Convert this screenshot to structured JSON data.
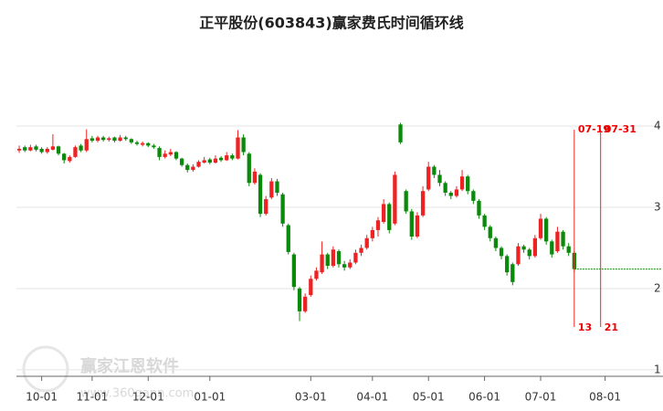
{
  "chart_data": {
    "type": "candlestick",
    "title": "正平股份(603843)赢家费氏时间循环线",
    "watermark": "赢家江恩软件",
    "watermark_url": "www.360gann.com",
    "up_color": "#ee2222",
    "down_color": "#0a8a0a",
    "marker_color": "#ee2222",
    "xlim": [
      -0.5,
      114.5
    ],
    "ylim": [
      0.92,
      4.99
    ],
    "yticks": [
      1,
      2,
      3,
      4
    ],
    "grid": true,
    "xticks": [
      {
        "value": 4,
        "label": "10-01"
      },
      {
        "value": 13,
        "label": "11-01"
      },
      {
        "value": 23,
        "label": "12-01"
      },
      {
        "value": 34,
        "label": "01-01"
      },
      {
        "value": 52,
        "label": "03-01"
      },
      {
        "value": 63,
        "label": "04-01"
      },
      {
        "value": 73,
        "label": "05-01"
      },
      {
        "value": 83,
        "label": "06-01"
      },
      {
        "value": 93,
        "label": "07-01"
      },
      {
        "value": 104.5,
        "label": "08-01"
      }
    ],
    "markers": [
      {
        "x": 99,
        "top_label": "07-19",
        "bottom_label": "13"
      },
      {
        "x": 103.7,
        "top_label": "07-31",
        "bottom_label": "21"
      }
    ],
    "projection_level": 2.24,
    "projection_color": "#0a8a0a",
    "ohlc": [
      [
        3.7,
        3.76,
        3.67,
        3.72
      ],
      [
        3.74,
        3.76,
        3.68,
        3.7
      ],
      [
        3.7,
        3.77,
        3.69,
        3.74
      ],
      [
        3.75,
        3.77,
        3.69,
        3.71
      ],
      [
        3.72,
        3.74,
        3.66,
        3.68
      ],
      [
        3.68,
        3.74,
        3.66,
        3.72
      ],
      [
        3.71,
        3.9,
        3.7,
        3.75
      ],
      [
        3.75,
        3.76,
        3.64,
        3.66
      ],
      [
        3.66,
        3.67,
        3.54,
        3.58
      ],
      [
        3.57,
        3.64,
        3.55,
        3.62
      ],
      [
        3.62,
        3.76,
        3.61,
        3.74
      ],
      [
        3.76,
        3.78,
        3.68,
        3.7
      ],
      [
        3.7,
        3.96,
        3.68,
        3.84
      ],
      [
        3.85,
        3.88,
        3.8,
        3.82
      ],
      [
        3.82,
        3.88,
        3.8,
        3.86
      ],
      [
        3.86,
        3.88,
        3.81,
        3.83
      ],
      [
        3.83,
        3.87,
        3.81,
        3.85
      ],
      [
        3.86,
        3.87,
        3.8,
        3.82
      ],
      [
        3.82,
        3.89,
        3.81,
        3.86
      ],
      [
        3.86,
        3.88,
        3.82,
        3.84
      ],
      [
        3.84,
        3.85,
        3.78,
        3.8
      ],
      [
        3.8,
        3.82,
        3.76,
        3.78
      ],
      [
        3.77,
        3.81,
        3.75,
        3.79
      ],
      [
        3.79,
        3.8,
        3.74,
        3.76
      ],
      [
        3.76,
        3.78,
        3.72,
        3.74
      ],
      [
        3.73,
        3.75,
        3.58,
        3.62
      ],
      [
        3.62,
        3.7,
        3.6,
        3.66
      ],
      [
        3.65,
        3.72,
        3.63,
        3.68
      ],
      [
        3.68,
        3.69,
        3.58,
        3.6
      ],
      [
        3.6,
        3.61,
        3.5,
        3.52
      ],
      [
        3.52,
        3.54,
        3.43,
        3.46
      ],
      [
        3.46,
        3.53,
        3.44,
        3.5
      ],
      [
        3.5,
        3.58,
        3.49,
        3.56
      ],
      [
        3.55,
        3.62,
        3.54,
        3.58
      ],
      [
        3.59,
        3.61,
        3.53,
        3.55
      ],
      [
        3.55,
        3.64,
        3.54,
        3.6
      ],
      [
        3.61,
        3.63,
        3.56,
        3.58
      ],
      [
        3.58,
        3.68,
        3.57,
        3.64
      ],
      [
        3.64,
        3.66,
        3.58,
        3.6
      ],
      [
        3.6,
        3.95,
        3.59,
        3.86
      ],
      [
        3.86,
        3.9,
        3.64,
        3.68
      ],
      [
        3.66,
        3.68,
        3.26,
        3.3
      ],
      [
        3.3,
        3.48,
        3.28,
        3.44
      ],
      [
        3.4,
        3.42,
        2.88,
        2.92
      ],
      [
        2.92,
        3.14,
        2.9,
        3.1
      ],
      [
        3.12,
        3.36,
        3.1,
        3.32
      ],
      [
        3.32,
        3.35,
        3.14,
        3.18
      ],
      [
        3.16,
        3.18,
        2.76,
        2.8
      ],
      [
        2.78,
        2.8,
        2.42,
        2.45
      ],
      [
        2.42,
        2.44,
        1.98,
        2.02
      ],
      [
        2.0,
        2.02,
        1.6,
        1.72
      ],
      [
        1.72,
        1.94,
        1.7,
        1.9
      ],
      [
        1.92,
        2.16,
        1.9,
        2.12
      ],
      [
        2.12,
        2.26,
        2.1,
        2.22
      ],
      [
        2.2,
        2.58,
        2.18,
        2.42
      ],
      [
        2.42,
        2.44,
        2.24,
        2.28
      ],
      [
        2.28,
        2.52,
        2.26,
        2.48
      ],
      [
        2.46,
        2.48,
        2.26,
        2.3
      ],
      [
        2.3,
        2.34,
        2.22,
        2.26
      ],
      [
        2.26,
        2.36,
        2.24,
        2.32
      ],
      [
        2.32,
        2.48,
        2.3,
        2.44
      ],
      [
        2.44,
        2.54,
        2.4,
        2.5
      ],
      [
        2.5,
        2.66,
        2.48,
        2.62
      ],
      [
        2.62,
        2.76,
        2.58,
        2.72
      ],
      [
        2.72,
        2.88,
        2.64,
        2.84
      ],
      [
        2.82,
        3.1,
        2.8,
        3.04
      ],
      [
        3.04,
        3.06,
        2.68,
        2.72
      ],
      [
        2.8,
        3.44,
        2.78,
        3.4
      ],
      [
        4.02,
        4.04,
        3.78,
        3.8
      ],
      [
        3.2,
        3.22,
        2.92,
        2.95
      ],
      [
        2.95,
        2.98,
        2.6,
        2.64
      ],
      [
        2.64,
        2.94,
        2.62,
        2.9
      ],
      [
        2.9,
        3.26,
        2.88,
        3.2
      ],
      [
        3.22,
        3.56,
        3.2,
        3.5
      ],
      [
        3.5,
        3.52,
        3.36,
        3.4
      ],
      [
        3.4,
        3.46,
        3.26,
        3.3
      ],
      [
        3.3,
        3.32,
        3.14,
        3.18
      ],
      [
        3.18,
        3.2,
        3.1,
        3.14
      ],
      [
        3.14,
        3.26,
        3.12,
        3.22
      ],
      [
        3.22,
        3.46,
        3.2,
        3.38
      ],
      [
        3.38,
        3.4,
        3.16,
        3.2
      ],
      [
        3.2,
        3.22,
        3.04,
        3.08
      ],
      [
        3.08,
        3.1,
        2.86,
        2.9
      ],
      [
        2.9,
        2.92,
        2.72,
        2.76
      ],
      [
        2.76,
        2.78,
        2.58,
        2.62
      ],
      [
        2.62,
        2.64,
        2.46,
        2.5
      ],
      [
        2.5,
        2.52,
        2.36,
        2.4
      ],
      [
        2.4,
        2.42,
        2.16,
        2.2
      ],
      [
        2.3,
        2.32,
        2.04,
        2.08
      ],
      [
        2.3,
        2.56,
        2.28,
        2.52
      ],
      [
        2.52,
        2.54,
        2.44,
        2.48
      ],
      [
        2.48,
        2.5,
        2.36,
        2.4
      ],
      [
        2.4,
        2.66,
        2.38,
        2.62
      ],
      [
        2.62,
        2.92,
        2.6,
        2.86
      ],
      [
        2.86,
        2.88,
        2.54,
        2.58
      ],
      [
        2.58,
        2.6,
        2.38,
        2.42
      ],
      [
        2.46,
        2.76,
        2.44,
        2.7
      ],
      [
        2.7,
        2.72,
        2.48,
        2.52
      ],
      [
        2.52,
        2.56,
        2.4,
        2.44
      ],
      [
        2.44,
        2.46,
        2.2,
        2.24
      ]
    ]
  }
}
